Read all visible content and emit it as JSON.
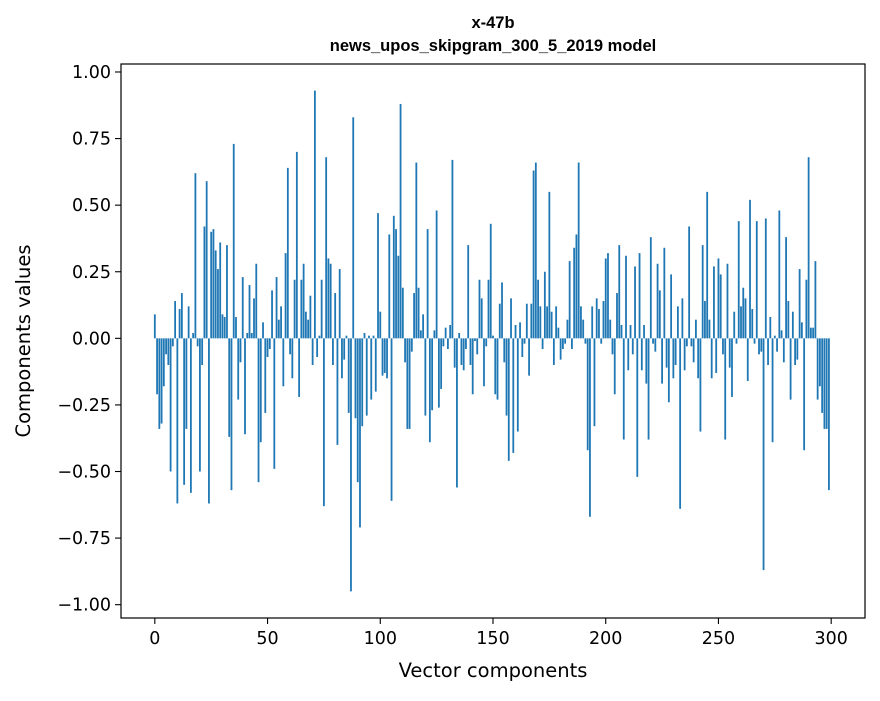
{
  "chart_data": {
    "type": "bar",
    "title_lines": [
      "x-47b",
      "news_upos_skipgram_300_5_2019 model"
    ],
    "xlabel": "Vector components",
    "ylabel": "Components values",
    "xlim": [
      -15,
      315
    ],
    "ylim": [
      -1.05,
      1.03
    ],
    "xticks": [
      0,
      50,
      100,
      150,
      200,
      250,
      300
    ],
    "xtick_labels": [
      "0",
      "50",
      "100",
      "150",
      "200",
      "250",
      "300"
    ],
    "yticks": [
      1.0,
      0.75,
      0.5,
      0.25,
      0.0,
      -0.25,
      -0.5,
      -0.75,
      -1.0
    ],
    "ytick_labels": [
      "1.00",
      "0.75",
      "0.50",
      "0.25",
      "0.00",
      "−0.25",
      "−0.50",
      "−0.75",
      "−1.00"
    ],
    "grid": false,
    "bar_color": "#1f77b4",
    "x": "component index 0..299",
    "values": [
      0.09,
      -0.21,
      -0.34,
      -0.32,
      -0.18,
      -0.06,
      -0.1,
      -0.5,
      -0.03,
      0.14,
      -0.62,
      0.11,
      0.17,
      -0.55,
      -0.34,
      0.12,
      -0.58,
      0.02,
      0.62,
      -0.03,
      -0.5,
      -0.1,
      0.42,
      0.59,
      -0.62,
      0.4,
      0.41,
      0.33,
      0.26,
      0.36,
      0.09,
      0.08,
      0.35,
      -0.37,
      -0.57,
      0.73,
      0.08,
      -0.23,
      -0.09,
      0.23,
      -0.36,
      0.02,
      0.2,
      0.02,
      0.15,
      0.28,
      -0.54,
      -0.39,
      0.06,
      -0.28,
      -0.07,
      -0.04,
      0.18,
      -0.49,
      0.23,
      0.07,
      0.12,
      -0.18,
      0.32,
      0.64,
      -0.06,
      -0.15,
      0.22,
      0.7,
      -0.22,
      0.22,
      0.28,
      0.1,
      0.07,
      0.16,
      -0.1,
      0.93,
      -0.07,
      0.01,
      0.22,
      -0.63,
      0.68,
      0.3,
      0.28,
      -0.1,
      0.17,
      -0.4,
      0.26,
      -0.15,
      -0.08,
      0.01,
      -0.28,
      -0.95,
      0.83,
      -0.3,
      -0.54,
      -0.71,
      -0.33,
      0.02,
      -0.29,
      0.01,
      -0.23,
      0.01,
      -0.2,
      0.47,
      0.1,
      -0.14,
      -0.13,
      -0.15,
      0.39,
      -0.61,
      0.46,
      0.41,
      0.31,
      0.88,
      0.19,
      -0.09,
      -0.34,
      -0.34,
      -0.05,
      0.17,
      0.66,
      0.19,
      0.03,
      0.09,
      -0.29,
      0.41,
      -0.39,
      -0.27,
      0.03,
      0.48,
      -0.26,
      -0.19,
      -0.03,
      0.04,
      -0.04,
      0.05,
      0.67,
      -0.11,
      -0.56,
      0.02,
      -0.1,
      -0.12,
      -0.04,
      0.35,
      -0.1,
      -0.21,
      -0.01,
      -0.06,
      0.22,
      0.15,
      -0.18,
      -0.03,
      0.22,
      0.43,
      0.01,
      -0.21,
      -0.23,
      0.13,
      0.21,
      -0.09,
      -0.29,
      -0.46,
      0.15,
      -0.43,
      0.05,
      -0.35,
      0.06,
      -0.07,
      -0.02,
      0.13,
      -0.14,
      0.13,
      0.63,
      0.66,
      0.22,
      0.12,
      -0.04,
      0.25,
      0.12,
      0.55,
      0.1,
      -0.1,
      0.12,
      0.04,
      -0.08,
      -0.04,
      -0.02,
      0.07,
      0.29,
      -0.04,
      0.34,
      0.39,
      0.66,
      0.12,
      0.07,
      -0.02,
      -0.42,
      -0.67,
      0.12,
      -0.33,
      0.15,
      0.11,
      -0.02,
      0.14,
      0.3,
      0.32,
      0.07,
      -0.06,
      -0.21,
      0.17,
      0.35,
      0.05,
      -0.38,
      0.31,
      -0.12,
      0.05,
      -0.06,
      0.27,
      -0.52,
      0.32,
      -0.12,
      0.05,
      -0.17,
      -0.38,
      0.38,
      -0.02,
      -0.05,
      0.28,
      0.18,
      -0.17,
      0.34,
      -0.11,
      -0.24,
      0.24,
      -0.15,
      -0.1,
      0.12,
      -0.64,
      0.15,
      -0.12,
      -0.03,
      0.42,
      -0.03,
      -0.09,
      0.07,
      -0.15,
      -0.35,
      0.35,
      0.14,
      0.55,
      0.07,
      -0.15,
      0.27,
      -0.13,
      0.3,
      0.24,
      -0.06,
      -0.38,
      0.28,
      -0.11,
      -0.22,
      0.1,
      -0.02,
      0.44,
      0.12,
      0.19,
      0.15,
      -0.16,
      0.52,
      0.11,
      -0.02,
      0.44,
      -0.06,
      -0.05,
      -0.87,
      0.45,
      -0.1,
      0.08,
      -0.39,
      0.01,
      -0.05,
      0.48,
      0.03,
      -0.09,
      0.38,
      0.14,
      -0.23,
      0.1,
      -0.1,
      -0.08,
      0.26,
      0.06,
      -0.42,
      0.22,
      0.68,
      0.04,
      0.04,
      0.29,
      -0.23,
      -0.18,
      -0.28,
      -0.34,
      -0.34,
      -0.57
    ]
  }
}
